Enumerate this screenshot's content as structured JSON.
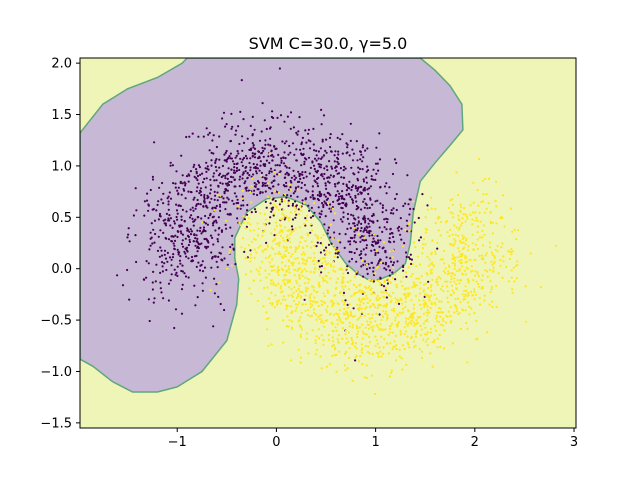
{
  "chart_data": {
    "type": "scatter",
    "title": "SVM C=30.0, γ=5.0",
    "xlabel": "",
    "ylabel": "",
    "xlim": [
      -1.98,
      3.02
    ],
    "ylim": [
      -1.55,
      2.05
    ],
    "x_ticks": [
      -1,
      0,
      1,
      2,
      3
    ],
    "y_ticks": [
      -1.5,
      -1.0,
      -0.5,
      0.0,
      0.5,
      1.0,
      1.5,
      2.0
    ],
    "y_tick_labels": [
      "−1.5",
      "−1.0",
      "−0.5",
      "0.0",
      "0.5",
      "1.0",
      "1.5",
      "2.0"
    ],
    "x_tick_labels": [
      "−1",
      "0",
      "1",
      "2",
      "3"
    ],
    "grid": false,
    "legend": "none",
    "colors": {
      "class0_point": "#440154",
      "class1_point": "#fde725",
      "class0_region": "#c7b8d6",
      "class1_region": "#eff5b6",
      "boundary": "#5fa77d"
    },
    "decision_boundary": [
      [
        -1.98,
        1.32
      ],
      [
        -1.75,
        1.6
      ],
      [
        -1.5,
        1.75
      ],
      [
        -1.2,
        1.86
      ],
      [
        -0.95,
        2.0
      ],
      [
        -0.9,
        2.05
      ],
      [
        1.45,
        2.05
      ],
      [
        1.6,
        1.93
      ],
      [
        1.75,
        1.78
      ],
      [
        1.87,
        1.6
      ],
      [
        1.88,
        1.35
      ],
      [
        1.75,
        1.2
      ],
      [
        1.6,
        1.03
      ],
      [
        1.45,
        0.85
      ],
      [
        1.38,
        0.55
      ],
      [
        1.35,
        0.25
      ],
      [
        1.3,
        0.05
      ],
      [
        1.18,
        -0.05
      ],
      [
        1.05,
        -0.1
      ],
      [
        0.95,
        -0.12
      ],
      [
        0.82,
        -0.05
      ],
      [
        0.7,
        0.05
      ],
      [
        0.55,
        0.25
      ],
      [
        0.45,
        0.45
      ],
      [
        0.3,
        0.62
      ],
      [
        0.1,
        0.7
      ],
      [
        -0.1,
        0.68
      ],
      [
        -0.3,
        0.55
      ],
      [
        -0.42,
        0.3
      ],
      [
        -0.42,
        0.1
      ],
      [
        -0.38,
        -0.1
      ],
      [
        -0.4,
        -0.35
      ],
      [
        -0.5,
        -0.7
      ],
      [
        -0.75,
        -1.0
      ],
      [
        -1.0,
        -1.15
      ],
      [
        -1.2,
        -1.2
      ],
      [
        -1.45,
        -1.2
      ],
      [
        -1.65,
        -1.1
      ],
      [
        -1.85,
        -0.95
      ],
      [
        -1.98,
        -0.88
      ]
    ],
    "series": [
      {
        "class": 0,
        "description_note_free": true,
        "arc": {
          "cx": 0.0,
          "cy": 0.0,
          "r": 1.0,
          "theta_start": 0.0,
          "theta_end": 3.14159,
          "noise": 0.25
        },
        "n": 1500
      },
      {
        "class": 1,
        "description_note_free": true,
        "arc": {
          "cx": 1.0,
          "cy": 0.5,
          "r": 1.0,
          "theta_start": 3.14159,
          "theta_end": 6.28318,
          "noise": 0.25
        },
        "n": 1500
      }
    ]
  }
}
